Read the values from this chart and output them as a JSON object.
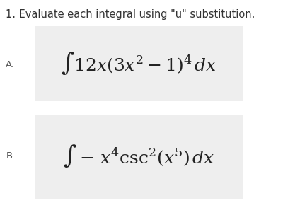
{
  "title": "1. Evaluate each integral using \"u\" substitution.",
  "title_fontsize": 10.5,
  "title_color": "#333333",
  "background_color": "#ffffff",
  "box_color": "#eeeeee",
  "label_A": "A.",
  "label_B": "B.",
  "label_fontsize": 9.5,
  "label_color": "#555555",
  "math_A": "$\\int 12x(3x^2 - 1)^4\\, dx$",
  "math_B": "$\\int - x^4\\csc^2(x^5)\\, dx$",
  "math_fontsize": 18,
  "math_color": "#222222"
}
